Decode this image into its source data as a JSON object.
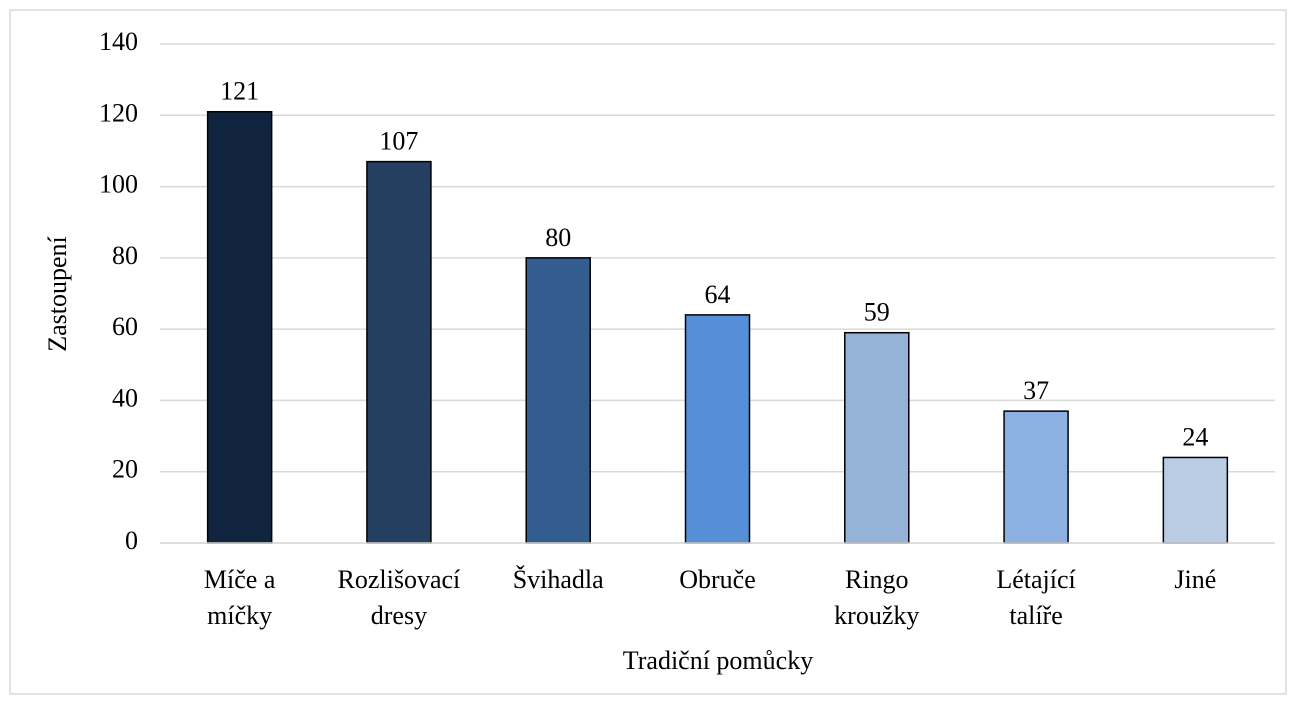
{
  "chart_data": {
    "type": "bar",
    "x_label": "Tradiční pomůcky",
    "y_label": "Zastoupení",
    "categories": [
      "Míče a\nmíčky",
      "Rozlišovací\ndresy",
      "Švihadla",
      "Obruče",
      "Ringo\nkroužky",
      "Létající\ntalíře",
      "Jiné"
    ],
    "values": [
      121,
      107,
      80,
      64,
      59,
      37,
      24
    ],
    "colors": [
      "#10243f",
      "#253f60",
      "#345d8f",
      "#568fd8",
      "#95b3d7",
      "#8db0e2",
      "#b9cce4"
    ],
    "ylim": [
      0,
      140
    ],
    "yticks": [
      0,
      20,
      40,
      60,
      80,
      100,
      120,
      140
    ],
    "grid": true
  }
}
